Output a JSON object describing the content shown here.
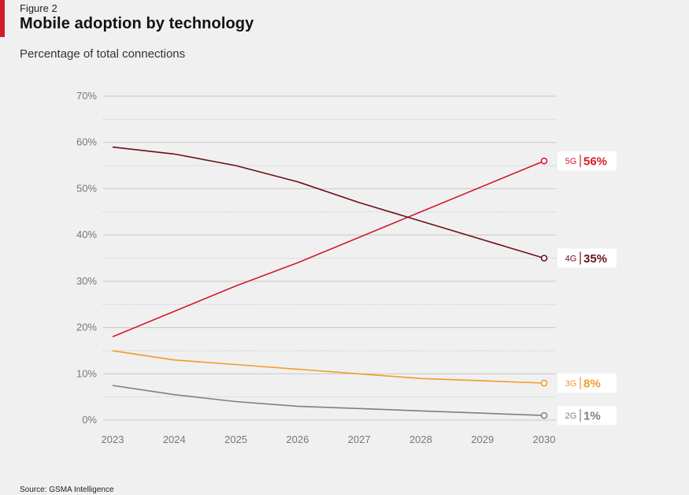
{
  "figure_label": "Figure 2",
  "title": "Mobile adoption by technology",
  "subtitle": "Percentage of total connections",
  "source": "Source: GSMA Intelligence",
  "chart_data": {
    "type": "line",
    "x": [
      2023,
      2024,
      2025,
      2026,
      2027,
      2028,
      2029,
      2030
    ],
    "x_tick_labels": [
      "2023",
      "2024",
      "2025",
      "2026",
      "2027",
      "2028",
      "2029",
      "2030"
    ],
    "ylim": [
      0,
      70
    ],
    "y_ticks": [
      0,
      10,
      20,
      30,
      40,
      50,
      60,
      70
    ],
    "y_tick_labels": [
      "0%",
      "10%",
      "20%",
      "30%",
      "40%",
      "50%",
      "60%",
      "70%"
    ],
    "grid": true,
    "series": [
      {
        "name": "5G",
        "end_label": "56%",
        "color": "#d21c2a",
        "values": [
          18,
          23.5,
          29,
          34,
          39.5,
          45,
          50.5,
          56
        ]
      },
      {
        "name": "4G",
        "end_label": "35%",
        "color": "#6b0f17",
        "values": [
          59,
          57.5,
          55,
          51.5,
          47,
          43,
          39,
          35
        ]
      },
      {
        "name": "3G",
        "end_label": "8%",
        "color": "#f39a2b",
        "values": [
          15,
          13,
          12,
          11,
          10,
          9,
          8.5,
          8
        ]
      },
      {
        "name": "2G",
        "end_label": "1%",
        "color": "#7f7f7f",
        "values": [
          7.5,
          5.5,
          4,
          3,
          2.5,
          2,
          1.5,
          1
        ]
      }
    ]
  }
}
